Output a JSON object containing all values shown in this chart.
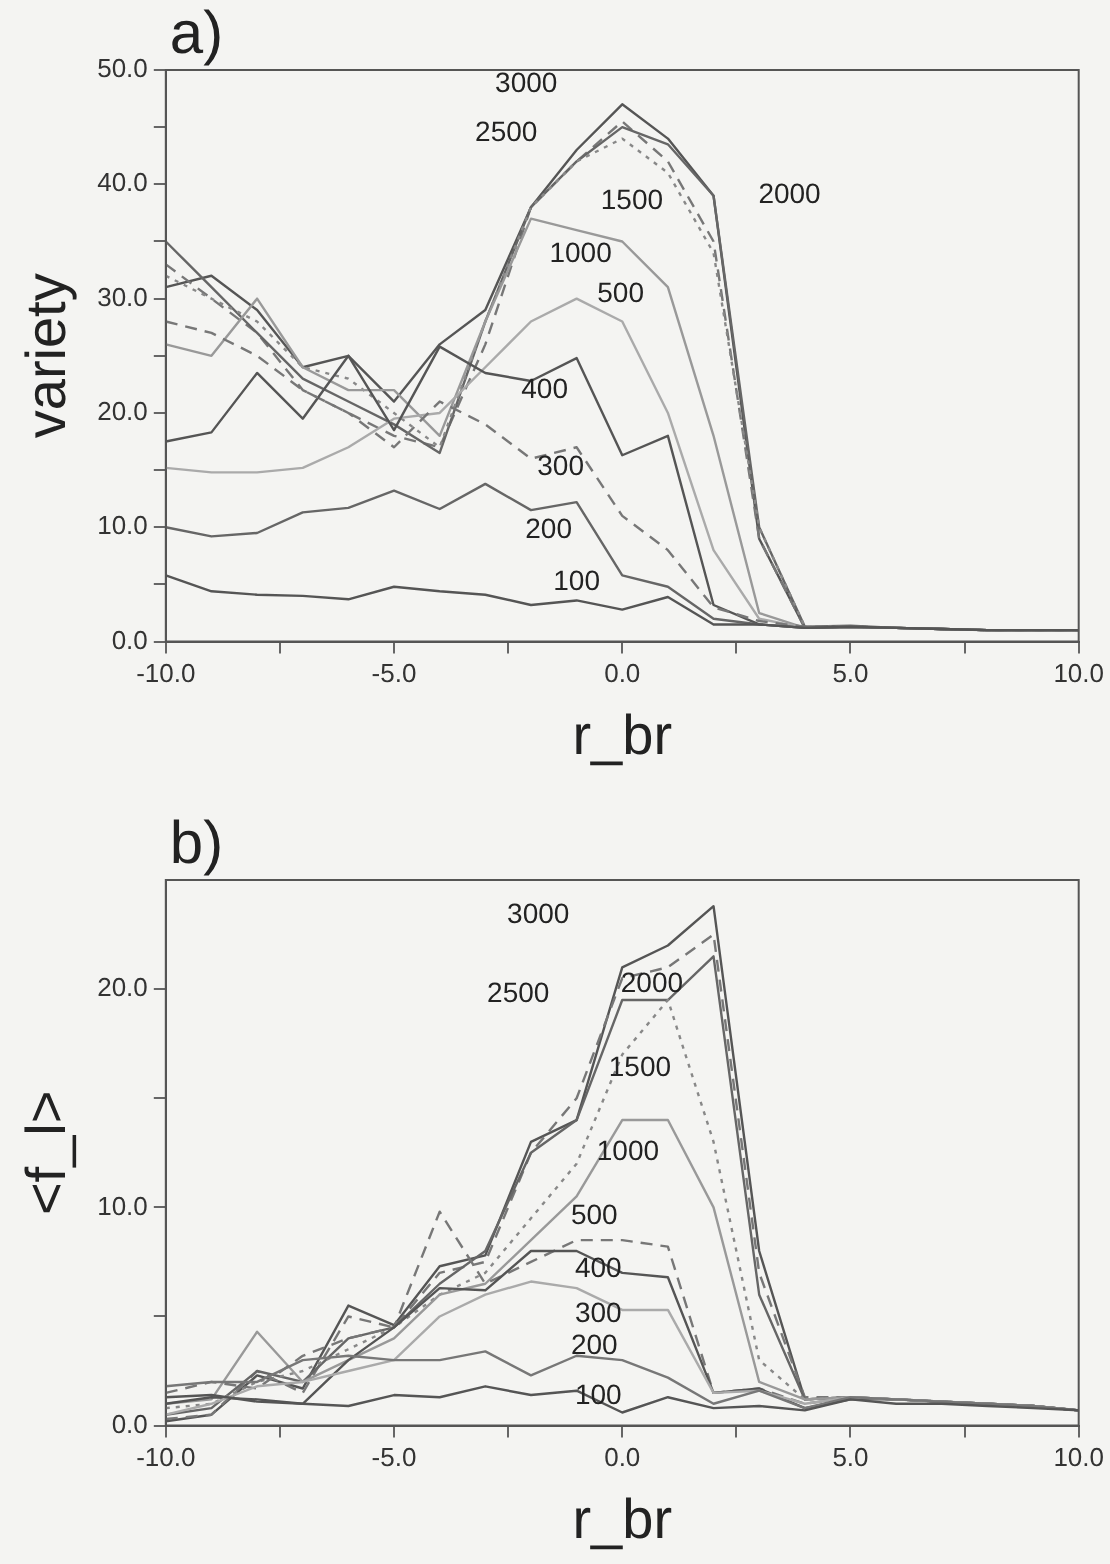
{
  "chart_data": [
    {
      "type": "line",
      "title": "a)",
      "xlabel": "r_br",
      "ylabel": "variety",
      "grid": false,
      "legend": false,
      "marker": "none",
      "x": [
        -10,
        -9,
        -8,
        -7,
        -6,
        -5,
        -4,
        -3,
        -2,
        -1,
        0,
        1,
        2,
        3,
        4,
        5,
        6,
        7,
        8,
        9,
        10
      ],
      "xlim": [
        -10,
        10
      ],
      "xticks": [
        {
          "value": -10,
          "label": "-10.0"
        },
        {
          "value": -7.5,
          "label": null
        },
        {
          "value": -5,
          "label": "-5.0"
        },
        {
          "value": -2.5,
          "label": null
        },
        {
          "value": 0,
          "label": "0.0"
        },
        {
          "value": 2.5,
          "label": null
        },
        {
          "value": 5,
          "label": "5.0"
        },
        {
          "value": 7.5,
          "label": null
        },
        {
          "value": 10,
          "label": "10.0"
        }
      ],
      "ylim": [
        0,
        50
      ],
      "yticks": [
        {
          "value": 0,
          "label": "0.0"
        },
        {
          "value": 5,
          "label": null
        },
        {
          "value": 10,
          "label": "10.0"
        },
        {
          "value": 15,
          "label": null
        },
        {
          "value": 20,
          "label": "20.0"
        },
        {
          "value": 25,
          "label": null
        },
        {
          "value": 30,
          "label": "30.0"
        },
        {
          "value": 35,
          "label": null
        },
        {
          "value": 40,
          "label": "40.0"
        },
        {
          "value": 45,
          "label": null
        },
        {
          "value": 50,
          "label": "50.0"
        }
      ],
      "series": [
        {
          "name": "100",
          "color": "#555555",
          "line_style": "solid",
          "values": [
            5.8,
            4.4,
            4.1,
            4.0,
            3.7,
            4.8,
            4.4,
            4.1,
            3.2,
            3.6,
            2.8,
            3.9,
            1.5,
            1.5,
            1.2,
            1.3,
            1.2,
            1.1,
            1.0,
            1.0,
            1.0
          ]
        },
        {
          "name": "200",
          "color": "#666666",
          "line_style": "solid",
          "values": [
            10.0,
            9.2,
            9.5,
            11.3,
            11.7,
            13.2,
            11.6,
            13.8,
            11.5,
            12.2,
            5.8,
            4.8,
            2.0,
            1.5,
            1.2,
            1.3,
            1.2,
            1.1,
            1.0,
            1.0,
            1.0
          ]
        },
        {
          "name": "300",
          "color": "#777777",
          "line_style": "dashed",
          "values": [
            28,
            27,
            25,
            22,
            20,
            17,
            21,
            19,
            16,
            17,
            11,
            8,
            3,
            1.8,
            1.3,
            1.3,
            1.2,
            1.1,
            1.0,
            1.0,
            1.0
          ]
        },
        {
          "name": "400",
          "color": "#555555",
          "line_style": "solid",
          "values": [
            17.5,
            18.3,
            23.5,
            19.5,
            25,
            18.5,
            25.8,
            23.5,
            22.8,
            24.8,
            16.3,
            18,
            3.2,
            1.5,
            1.2,
            1.3,
            1.2,
            1.1,
            1.0,
            1.0,
            1.0
          ]
        },
        {
          "name": "500",
          "color": "#aaaaaa",
          "line_style": "solid",
          "values": [
            15.2,
            14.8,
            14.8,
            15.2,
            17,
            19.5,
            20,
            24,
            28,
            30,
            28,
            20,
            8,
            2,
            1.2,
            1.3,
            1.2,
            1.1,
            1.0,
            1.0,
            1.0
          ]
        },
        {
          "name": "1000",
          "color": "#999999",
          "line_style": "solid",
          "values": [
            26,
            25,
            30,
            24,
            22,
            22,
            18,
            28,
            37,
            36,
            35,
            31,
            18,
            2.5,
            1.2,
            1.3,
            1.2,
            1.1,
            1.0,
            1.0,
            1.0
          ]
        },
        {
          "name": "1500",
          "color": "#888888",
          "line_style": "dotted",
          "values": [
            32,
            30,
            28,
            24,
            23,
            20,
            17,
            28,
            38,
            42,
            44,
            41,
            34,
            10,
            1.3,
            1.3,
            1.2,
            1.1,
            1.0,
            1.0,
            1.0
          ]
        },
        {
          "name": "2000",
          "color": "#666666",
          "line_style": "solid",
          "values": [
            35,
            31,
            27,
            23,
            21,
            19,
            16.5,
            28,
            38,
            42,
            45,
            43.5,
            39,
            10,
            1.3,
            1.4,
            1.2,
            1.1,
            1.0,
            1.0,
            1.0
          ]
        },
        {
          "name": "2500",
          "color": "#777777",
          "line_style": "dashed",
          "values": [
            33,
            30,
            27,
            22,
            20,
            18,
            17,
            26,
            38,
            42,
            45.5,
            42,
            35,
            9,
            1.2,
            1.3,
            1.2,
            1.1,
            1.0,
            1.0,
            1.0
          ]
        },
        {
          "name": "3000",
          "color": "#555555",
          "line_style": "solid",
          "values": [
            31,
            32,
            29,
            24,
            25,
            21,
            26,
            29,
            38,
            43,
            47,
            44,
            39,
            9,
            1.2,
            1.3,
            1.2,
            1.1,
            1.0,
            1.0,
            1.0
          ]
        }
      ]
    },
    {
      "type": "line",
      "title": "b)",
      "xlabel": "r_br",
      "ylabel": "<f_l>",
      "grid": false,
      "legend": false,
      "marker": "none",
      "x": [
        -10,
        -9,
        -8,
        -7,
        -6,
        -5,
        -4,
        -3,
        -2,
        -1,
        0,
        1,
        2,
        3,
        4,
        5,
        6,
        7,
        8,
        9,
        10
      ],
      "xlim": [
        -10,
        10
      ],
      "xticks": [
        {
          "value": -10,
          "label": "-10.0"
        },
        {
          "value": -7.5,
          "label": null
        },
        {
          "value": -5,
          "label": "-5.0"
        },
        {
          "value": -2.5,
          "label": null
        },
        {
          "value": 0,
          "label": "0.0"
        },
        {
          "value": 2.5,
          "label": null
        },
        {
          "value": 5,
          "label": "5.0"
        },
        {
          "value": 7.5,
          "label": null
        },
        {
          "value": 10,
          "label": "10.0"
        }
      ],
      "ylim": [
        0,
        25
      ],
      "yticks": [
        {
          "value": 0,
          "label": "0.0"
        },
        {
          "value": 5,
          "label": null
        },
        {
          "value": 10,
          "label": "10.0"
        },
        {
          "value": 15,
          "label": null
        },
        {
          "value": 20,
          "label": "20.0"
        }
      ],
      "series": [
        {
          "name": "100",
          "color": "#555555",
          "line_style": "solid",
          "values": [
            1.3,
            1.4,
            1.1,
            1.0,
            0.9,
            1.4,
            1.3,
            1.8,
            1.4,
            1.6,
            0.6,
            1.3,
            0.8,
            0.9,
            0.7,
            1.2,
            1.0,
            1.0,
            0.9,
            0.8,
            0.7
          ]
        },
        {
          "name": "200",
          "color": "#777777",
          "line_style": "solid",
          "values": [
            1.8,
            2.0,
            2.0,
            3.0,
            3.2,
            3.0,
            3.0,
            3.4,
            2.3,
            3.2,
            3.0,
            2.2,
            1.0,
            1.6,
            0.8,
            1.3,
            1.2,
            1.1,
            1.0,
            0.9,
            0.7
          ]
        },
        {
          "name": "300",
          "color": "#aaaaaa",
          "line_style": "solid",
          "values": [
            0.5,
            1.0,
            1.8,
            2.0,
            2.5,
            3.0,
            5.0,
            6.0,
            6.6,
            6.3,
            5.3,
            5.3,
            1.5,
            1.6,
            1.0,
            1.3,
            1.2,
            1.1,
            1.0,
            0.9,
            0.7
          ]
        },
        {
          "name": "400",
          "color": "#555555",
          "line_style": "solid",
          "values": [
            1.0,
            1.3,
            1.2,
            1.0,
            3.0,
            4.5,
            6.3,
            6.2,
            8.0,
            8.0,
            7.0,
            6.8,
            1.5,
            1.7,
            0.8,
            1.2,
            1.2,
            1.1,
            1.0,
            0.9,
            0.7
          ]
        },
        {
          "name": "500",
          "color": "#777777",
          "line_style": "dashed",
          "values": [
            1.5,
            2.0,
            1.7,
            3.2,
            4.0,
            4.5,
            9.8,
            6.5,
            7.5,
            8.5,
            8.5,
            8.2,
            1.5,
            1.7,
            1.0,
            1.3,
            1.2,
            1.1,
            1.0,
            0.9,
            0.7
          ]
        },
        {
          "name": "1000",
          "color": "#999999",
          "line_style": "solid",
          "values": [
            1.0,
            1.2,
            4.3,
            2.0,
            3.0,
            4.0,
            6.0,
            6.5,
            8.5,
            10.5,
            14,
            14,
            10,
            2,
            1.2,
            1.3,
            1.2,
            1.1,
            1.0,
            0.9,
            0.7
          ]
        },
        {
          "name": "1500",
          "color": "#888888",
          "line_style": "dotted",
          "values": [
            0.8,
            1.0,
            2.0,
            2.5,
            3.5,
            4.5,
            6,
            7,
            9.5,
            12,
            17,
            19.5,
            13,
            3,
            1.2,
            1.3,
            1.2,
            1.1,
            1.0,
            0.9,
            0.7
          ]
        },
        {
          "name": "2000",
          "color": "#666666",
          "line_style": "solid",
          "values": [
            0.5,
            0.8,
            2.5,
            2.0,
            4.0,
            4.5,
            6.5,
            8,
            12.5,
            14,
            19.5,
            19.5,
            21.5,
            6,
            1.2,
            1.3,
            1.2,
            1.1,
            1.0,
            0.9,
            0.7
          ]
        },
        {
          "name": "2500",
          "color": "#777777",
          "line_style": "dashed",
          "values": [
            0.3,
            0.5,
            2.5,
            1.5,
            5.0,
            4.5,
            7,
            7.5,
            12.5,
            15,
            20.5,
            21,
            22.5,
            7,
            1.3,
            1.3,
            1.2,
            1.1,
            1.0,
            0.9,
            0.7
          ]
        },
        {
          "name": "3000",
          "color": "#555555",
          "line_style": "solid",
          "values": [
            0.2,
            0.5,
            2.3,
            1.7,
            5.5,
            4.6,
            7.3,
            7.8,
            13,
            14,
            21,
            22,
            23.8,
            8,
            1.2,
            1.3,
            1.2,
            1.1,
            1.0,
            0.9,
            0.7
          ]
        }
      ]
    }
  ]
}
